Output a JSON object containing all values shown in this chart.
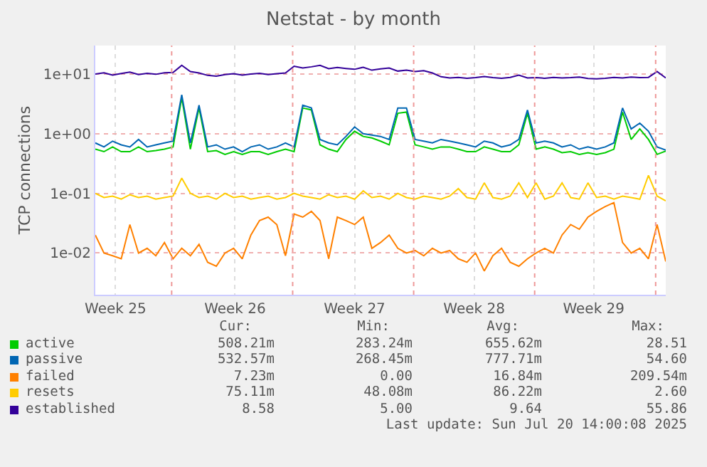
{
  "chart_data": {
    "type": "line",
    "title": "Netstat - by month",
    "ylabel": "TCP connections",
    "log": "y",
    "grid": true,
    "legend": "bottom",
    "marker": "none",
    "line_style": "solid",
    "x": [
      "2025-06-17T14:00",
      "2025-06-18T02:00",
      "2025-06-18T14:00",
      "2025-06-19T02:00",
      "2025-06-19T14:00",
      "2025-06-20T02:00",
      "2025-06-20T14:00",
      "2025-06-21T02:00",
      "2025-06-21T14:00",
      "2025-06-22T02:00",
      "2025-06-22T14:00",
      "2025-06-23T02:00",
      "2025-06-23T14:00",
      "2025-06-24T02:00",
      "2025-06-24T14:00",
      "2025-06-25T02:00",
      "2025-06-25T14:00",
      "2025-06-26T02:00",
      "2025-06-26T14:00",
      "2025-06-27T02:00",
      "2025-06-27T14:00",
      "2025-06-28T02:00",
      "2025-06-28T14:00",
      "2025-06-29T02:00",
      "2025-06-29T14:00",
      "2025-06-30T02:00",
      "2025-06-30T14:00",
      "2025-07-01T02:00",
      "2025-07-01T14:00",
      "2025-07-02T02:00",
      "2025-07-02T14:00",
      "2025-07-03T02:00",
      "2025-07-03T14:00",
      "2025-07-04T02:00",
      "2025-07-04T14:00",
      "2025-07-05T02:00",
      "2025-07-05T14:00",
      "2025-07-06T02:00",
      "2025-07-06T14:00",
      "2025-07-07T02:00",
      "2025-07-07T14:00",
      "2025-07-08T02:00",
      "2025-07-08T14:00",
      "2025-07-09T02:00",
      "2025-07-09T14:00",
      "2025-07-10T02:00",
      "2025-07-10T14:00",
      "2025-07-11T02:00",
      "2025-07-11T14:00",
      "2025-07-12T02:00",
      "2025-07-12T14:00",
      "2025-07-13T02:00",
      "2025-07-13T14:00",
      "2025-07-14T02:00",
      "2025-07-14T14:00",
      "2025-07-15T02:00",
      "2025-07-15T14:00",
      "2025-07-16T02:00",
      "2025-07-16T14:00",
      "2025-07-17T02:00",
      "2025-07-17T14:00",
      "2025-07-18T02:00",
      "2025-07-18T14:00",
      "2025-07-19T02:00",
      "2025-07-19T14:00",
      "2025-07-20T02:00",
      "2025-07-20T14:00"
    ],
    "xlim": [
      "2025-06-17T14:00",
      "2025-07-20T14:00"
    ],
    "xticks": [
      {
        "value": "2025-06-18T18:00",
        "label": "Week 25"
      },
      {
        "value": "2025-06-25T16:00",
        "label": "Week 26"
      },
      {
        "value": "2025-07-02T14:00",
        "label": "Week 27"
      },
      {
        "value": "2025-07-09T12:00",
        "label": "Week 28"
      },
      {
        "value": "2025-07-16T10:00",
        "label": "Week 29"
      }
    ],
    "ylim": [
      0.002,
      30
    ],
    "yticks": [
      {
        "value": 0.01,
        "label": "1e-02"
      },
      {
        "value": 0.1,
        "label": "1e-01"
      },
      {
        "value": 1,
        "label": "1e+00"
      },
      {
        "value": 10,
        "label": "1e+01"
      }
    ],
    "ref_lines": [
      {
        "axis": "x",
        "value": "2025-06-22T00:00",
        "color": "#ee9999",
        "line_style": "dotted"
      },
      {
        "axis": "x",
        "value": "2025-06-29T00:00",
        "color": "#ee9999",
        "line_style": "dotted"
      },
      {
        "axis": "x",
        "value": "2025-07-06T00:00",
        "color": "#ee9999",
        "line_style": "dotted"
      },
      {
        "axis": "x",
        "value": "2025-07-13T00:00",
        "color": "#ee9999",
        "line_style": "dotted"
      },
      {
        "axis": "x",
        "value": "2025-07-20T00:00",
        "color": "#ee9999",
        "line_style": "dotted"
      }
    ],
    "series": [
      {
        "name": "active",
        "color": "#00cc00",
        "values": [
          0.55,
          0.5,
          0.6,
          0.5,
          0.5,
          0.6,
          0.5,
          0.52,
          0.55,
          0.6,
          4,
          0.55,
          2.7,
          0.5,
          0.52,
          0.45,
          0.5,
          0.45,
          0.5,
          0.5,
          0.45,
          0.5,
          0.55,
          0.5,
          2.7,
          2.5,
          0.65,
          0.55,
          0.5,
          0.8,
          1.1,
          0.9,
          0.85,
          0.75,
          0.65,
          2.2,
          2.3,
          0.65,
          0.6,
          0.55,
          0.6,
          0.6,
          0.55,
          0.5,
          0.5,
          0.6,
          0.55,
          0.5,
          0.5,
          0.65,
          2.2,
          0.55,
          0.6,
          0.55,
          0.48,
          0.5,
          0.45,
          0.48,
          0.45,
          0.48,
          0.55,
          2.3,
          0.8,
          1.2,
          0.8,
          0.45,
          0.51
        ]
      },
      {
        "name": "passive",
        "color": "#0066b3",
        "values": [
          0.7,
          0.6,
          0.75,
          0.65,
          0.6,
          0.8,
          0.6,
          0.65,
          0.7,
          0.75,
          4.5,
          0.7,
          3,
          0.6,
          0.65,
          0.55,
          0.6,
          0.5,
          0.6,
          0.65,
          0.55,
          0.6,
          0.7,
          0.6,
          3,
          2.7,
          0.8,
          0.7,
          0.65,
          0.9,
          1.3,
          1.0,
          0.95,
          0.9,
          0.8,
          2.7,
          2.7,
          0.8,
          0.75,
          0.7,
          0.8,
          0.75,
          0.7,
          0.65,
          0.6,
          0.75,
          0.7,
          0.6,
          0.65,
          0.8,
          2.5,
          0.7,
          0.75,
          0.7,
          0.6,
          0.65,
          0.55,
          0.6,
          0.55,
          0.6,
          0.7,
          2.7,
          1.2,
          1.5,
          1.1,
          0.6,
          0.53
        ]
      },
      {
        "name": "failed",
        "color": "#ff8000",
        "values": [
          0.02,
          0.01,
          0.009,
          0.008,
          0.03,
          0.01,
          0.012,
          0.009,
          0.015,
          0.008,
          0.012,
          0.009,
          0.014,
          0.007,
          0.006,
          0.01,
          0.012,
          0.008,
          0.02,
          0.035,
          0.04,
          0.03,
          0.009,
          0.045,
          0.04,
          0.05,
          0.035,
          0.008,
          0.04,
          0.035,
          0.03,
          0.04,
          0.012,
          0.015,
          0.02,
          0.012,
          0.01,
          0.011,
          0.009,
          0.012,
          0.01,
          0.011,
          0.008,
          0.007,
          0.01,
          0.005,
          0.009,
          0.012,
          0.007,
          0.006,
          0.008,
          0.01,
          0.012,
          0.01,
          0.02,
          0.03,
          0.025,
          0.04,
          0.05,
          0.06,
          0.07,
          0.015,
          0.01,
          0.012,
          0.008,
          0.03,
          0.0072
        ]
      },
      {
        "name": "resets",
        "color": "#ffcc00",
        "values": [
          0.1,
          0.085,
          0.09,
          0.08,
          0.095,
          0.085,
          0.09,
          0.08,
          0.085,
          0.09,
          0.18,
          0.1,
          0.085,
          0.09,
          0.08,
          0.1,
          0.085,
          0.09,
          0.08,
          0.085,
          0.09,
          0.08,
          0.085,
          0.1,
          0.09,
          0.085,
          0.08,
          0.095,
          0.085,
          0.09,
          0.08,
          0.11,
          0.085,
          0.09,
          0.08,
          0.1,
          0.085,
          0.08,
          0.09,
          0.085,
          0.08,
          0.09,
          0.12,
          0.085,
          0.08,
          0.15,
          0.085,
          0.08,
          0.09,
          0.15,
          0.085,
          0.15,
          0.08,
          0.09,
          0.15,
          0.085,
          0.08,
          0.15,
          0.085,
          0.09,
          0.08,
          0.09,
          0.085,
          0.08,
          0.2,
          0.09,
          0.075
        ]
      },
      {
        "name": "established",
        "color": "#330099",
        "values": [
          10,
          10.5,
          9.6,
          10.2,
          10.8,
          9.8,
          10.3,
          9.9,
          10.5,
          10.6,
          14,
          11,
          10.4,
          9.5,
          9.2,
          9.8,
          10.1,
          9.6,
          10,
          10.3,
          9.8,
          10.1,
          10.4,
          13.5,
          12.6,
          13.2,
          14,
          12.3,
          12.9,
          12.4,
          12,
          13,
          11.6,
          12.2,
          12.6,
          11.2,
          11.6,
          11,
          11.4,
          10.4,
          9,
          8.6,
          8.8,
          8.5,
          8.7,
          9.1,
          8.7,
          8.5,
          8.8,
          9.6,
          8.6,
          8.7,
          8.5,
          8.8,
          8.6,
          8.7,
          8.9,
          8.4,
          8.3,
          8.5,
          8.8,
          8.6,
          8.9,
          8.7,
          8.8,
          11,
          8.58
        ]
      }
    ],
    "annotations": [
      "Cur:",
      "Min:",
      "Avg:",
      "Max:",
      "508.21m",
      "283.24m",
      "655.62m",
      "28.51",
      "532.57m",
      "268.45m",
      "777.71m",
      "54.60",
      "7.23m",
      "0.00",
      "16.84m",
      "209.54m",
      "75.11m",
      "48.08m",
      "86.22m",
      "2.60",
      "8.58",
      "5.00",
      "9.64",
      "55.86",
      "Last update: Sun Jul 20 14:00:08 2025"
    ]
  }
}
